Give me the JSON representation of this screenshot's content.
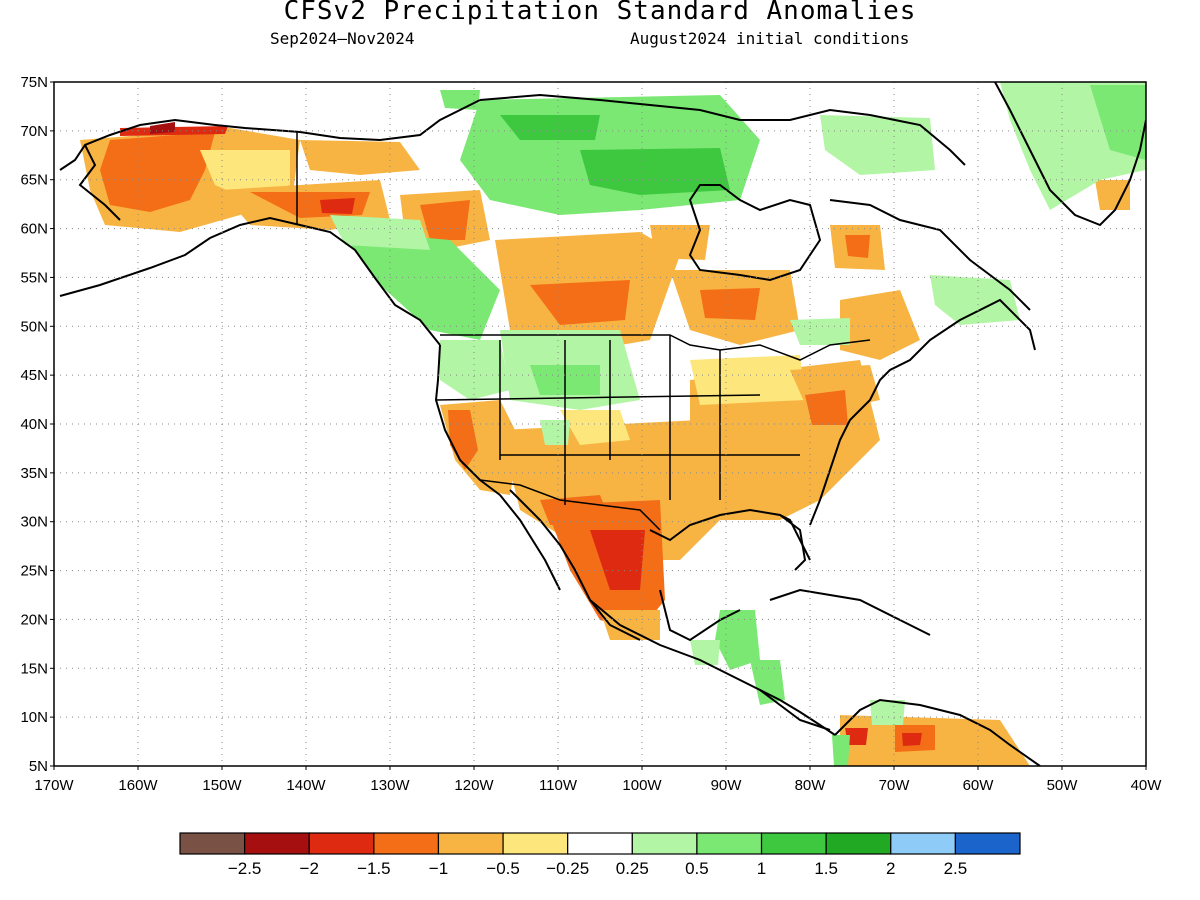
{
  "title": "CFSv2 Precipitation Standard Anomalies",
  "subtitle_left": "Sep2024–Nov2024",
  "subtitle_right": "August2024 initial conditions",
  "map": {
    "lon_range": [
      -170,
      -40
    ],
    "lat_range": [
      5,
      75
    ],
    "lat_ticks": [
      75,
      70,
      65,
      60,
      55,
      50,
      45,
      40,
      35,
      30,
      25,
      20,
      15,
      10,
      5
    ],
    "lat_labels": [
      "75N",
      "70N",
      "65N",
      "60N",
      "55N",
      "50N",
      "45N",
      "40N",
      "35N",
      "30N",
      "25N",
      "20N",
      "15N",
      "10N",
      "5N"
    ],
    "lon_ticks": [
      -170,
      -160,
      -150,
      -140,
      -130,
      -120,
      -110,
      -100,
      -90,
      -80,
      -70,
      -60,
      -50,
      -40
    ],
    "lon_labels": [
      "170W",
      "160W",
      "150W",
      "140W",
      "130W",
      "120W",
      "110W",
      "100W",
      "90W",
      "80W",
      "70W",
      "60W",
      "50W",
      "40W"
    ],
    "grid": "dotted"
  },
  "colorbar": {
    "colors": [
      "#7a5245",
      "#a50f0f",
      "#dd2a10",
      "#f46d17",
      "#f8b443",
      "#fde67c",
      "#ffffff",
      "#b2f5a5",
      "#7ae873",
      "#3ec83f",
      "#22a923",
      "#8ecbf6",
      "#1b64cc"
    ],
    "labels": [
      "-2.5",
      "-2",
      "-1.5",
      "-1",
      "-0.5",
      "-0.25",
      "0.25",
      "0.5",
      "1",
      "1.5",
      "2",
      "2.5"
    ]
  },
  "anomaly_regions": [
    {
      "name": "western-alaska",
      "lon": -158,
      "lat": 64,
      "value": -1.5
    },
    {
      "name": "yukon",
      "lon": -136,
      "lat": 62,
      "value": -1.5
    },
    {
      "name": "northern-bc",
      "lon": -124,
      "lat": 60,
      "value": -1.5
    },
    {
      "name": "canadian-arctic",
      "lon": -105,
      "lat": 68,
      "value": 1
    },
    {
      "name": "hudson-bay-west",
      "lon": -95,
      "lat": 65,
      "value": 1
    },
    {
      "name": "saskatchewan",
      "lon": -107,
      "lat": 52,
      "value": -1.5
    },
    {
      "name": "ontario",
      "lon": -88,
      "lat": 52,
      "value": -1
    },
    {
      "name": "labrador",
      "lon": -69,
      "lat": 58,
      "value": -1
    },
    {
      "name": "greenland",
      "lon": -48,
      "lat": 70,
      "value": 0.5
    },
    {
      "name": "southwest-us",
      "lon": -108,
      "lat": 35,
      "value": -0.5
    },
    {
      "name": "northeast-mexico",
      "lon": -103,
      "lat": 26,
      "value": -1.5
    },
    {
      "name": "central-mexico",
      "lon": -101,
      "lat": 21,
      "value": -1
    },
    {
      "name": "southeast-us",
      "lon": -87,
      "lat": 33,
      "value": -0.5
    },
    {
      "name": "northeast-us",
      "lon": -76,
      "lat": 42,
      "value": -1
    },
    {
      "name": "montana",
      "lon": -110,
      "lat": 46,
      "value": 0.5
    },
    {
      "name": "central-america",
      "lon": -89,
      "lat": 15,
      "value": 0.5
    },
    {
      "name": "northern-south-america",
      "lon": -68,
      "lat": 8,
      "value": -1
    }
  ]
}
